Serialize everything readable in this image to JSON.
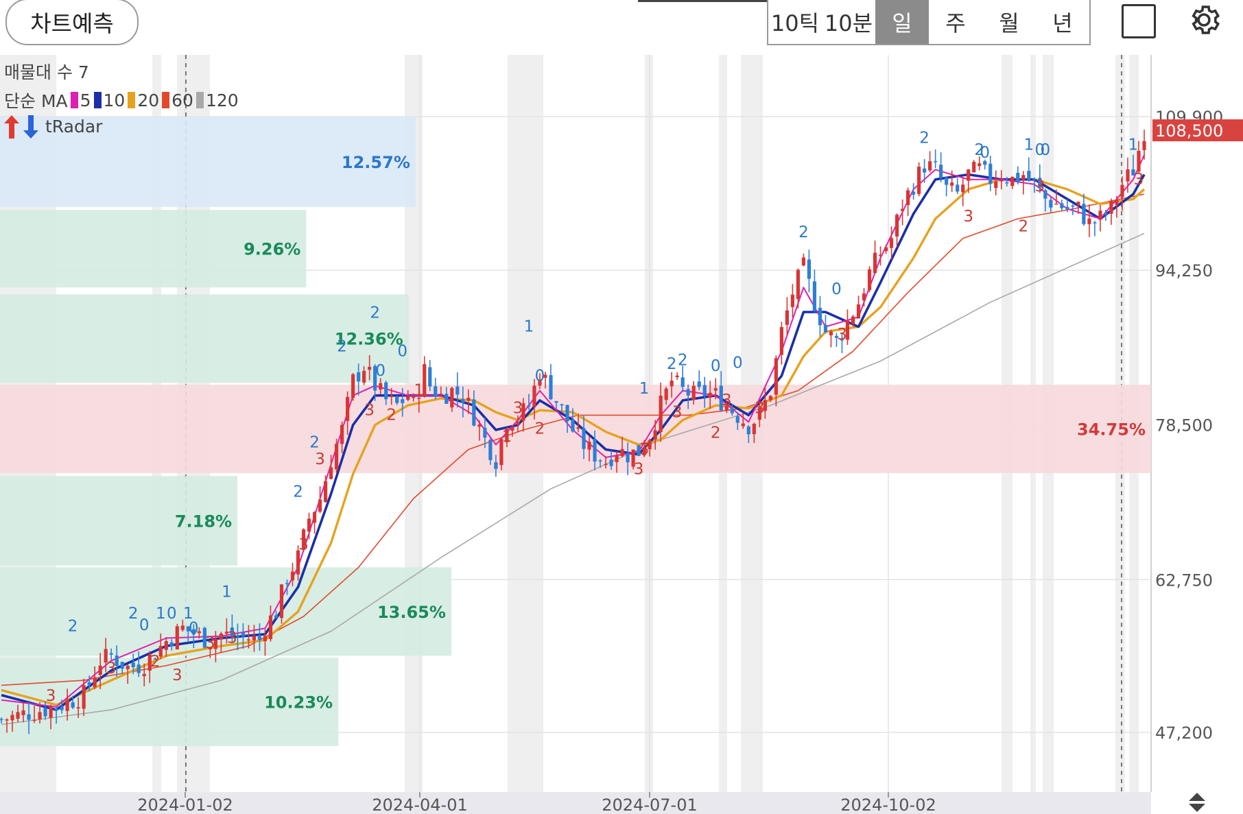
{
  "toolbar": {
    "predict_button": "차트예측",
    "periods": [
      "10틱",
      "10분",
      "일",
      "주",
      "월",
      "년"
    ],
    "selected_period": "일",
    "icons": [
      "square-icon",
      "gear-icon"
    ]
  },
  "legend": {
    "volume_profile": "매물대 수 7",
    "ma_label": "단순 MA",
    "ma_items": [
      {
        "label": "5",
        "color": "#e01fb0"
      },
      {
        "label": "10",
        "color": "#1a2fa8"
      },
      {
        "label": "20",
        "color": "#e6a21f"
      },
      {
        "label": "60",
        "color": "#e2492a"
      },
      {
        "label": "120",
        "color": "#a8a8a8"
      }
    ],
    "tradar": "tRadar"
  },
  "colors": {
    "up": "#d93535",
    "down": "#2d7fd6",
    "profile": "#d4ebe1",
    "profile_top": "#d9e8f7",
    "profile_max": "#f6d9dc",
    "grid": "#e3e3e3"
  },
  "chart_data": {
    "type": "candlestick",
    "symbol_last_price": "108,500",
    "x_tick_labels": [
      "2024-01-02",
      "2024-04-01",
      "2024-07-01",
      "2024-10-02"
    ],
    "y_tick_labels": [
      "47,200",
      "62,750",
      "78,500",
      "94,250",
      "109,900"
    ],
    "ylim": [
      44000,
      112500
    ],
    "price_series": [
      [
        0,
        48500
      ],
      [
        5,
        49200
      ],
      [
        10,
        49800
      ],
      [
        15,
        51000
      ],
      [
        18,
        54500
      ],
      [
        20,
        55000
      ],
      [
        23,
        53800
      ],
      [
        26,
        54200
      ],
      [
        30,
        56500
      ],
      [
        33,
        57800
      ],
      [
        38,
        56500
      ],
      [
        40,
        57200
      ],
      [
        42,
        57000
      ],
      [
        45,
        56800
      ],
      [
        47,
        56600
      ],
      [
        48,
        58000
      ],
      [
        50,
        59500
      ],
      [
        52,
        63000
      ],
      [
        54,
        65000
      ],
      [
        56,
        69000
      ],
      [
        58,
        71000
      ],
      [
        60,
        75000
      ],
      [
        62,
        78000
      ],
      [
        64,
        83000
      ],
      [
        66,
        84500
      ],
      [
        68,
        82500
      ],
      [
        70,
        81000
      ],
      [
        72,
        80500
      ],
      [
        74,
        81500
      ],
      [
        75,
        80500
      ],
      [
        77,
        84000
      ],
      [
        78,
        82500
      ],
      [
        80,
        81500
      ],
      [
        82,
        82000
      ],
      [
        84,
        81500
      ],
      [
        86,
        79500
      ],
      [
        88,
        77000
      ],
      [
        90,
        75000
      ],
      [
        92,
        79000
      ],
      [
        94,
        79200
      ],
      [
        96,
        80500
      ],
      [
        98,
        84000
      ],
      [
        100,
        82000
      ],
      [
        102,
        80000
      ],
      [
        104,
        78000
      ],
      [
        106,
        76500
      ],
      [
        108,
        75500
      ],
      [
        110,
        74800
      ],
      [
        112,
        76000
      ],
      [
        114,
        75500
      ],
      [
        116,
        75800
      ],
      [
        118,
        77500
      ],
      [
        120,
        80500
      ],
      [
        122,
        83000
      ],
      [
        124,
        82000
      ],
      [
        126,
        81500
      ],
      [
        128,
        81800
      ],
      [
        130,
        81500
      ],
      [
        132,
        80500
      ],
      [
        134,
        79500
      ],
      [
        136,
        78500
      ],
      [
        138,
        79500
      ],
      [
        140,
        82000
      ],
      [
        142,
        88000
      ],
      [
        144,
        92000
      ],
      [
        146,
        94500
      ],
      [
        148,
        91000
      ],
      [
        150,
        88000
      ],
      [
        152,
        87000
      ],
      [
        154,
        89000
      ],
      [
        156,
        91000
      ],
      [
        158,
        94000
      ],
      [
        160,
        96000
      ],
      [
        162,
        97500
      ],
      [
        164,
        101000
      ],
      [
        166,
        103000
      ],
      [
        168,
        105000
      ],
      [
        170,
        104500
      ],
      [
        172,
        102500
      ],
      [
        174,
        102000
      ],
      [
        176,
        104000
      ],
      [
        178,
        104500
      ],
      [
        180,
        103500
      ],
      [
        182,
        104000
      ],
      [
        184,
        103500
      ],
      [
        186,
        104000
      ],
      [
        188,
        103000
      ],
      [
        190,
        101500
      ],
      [
        192,
        101000
      ],
      [
        194,
        100500
      ],
      [
        196,
        100500
      ],
      [
        198,
        99000
      ],
      [
        200,
        99500
      ],
      [
        202,
        100500
      ],
      [
        204,
        103000
      ],
      [
        206,
        104500
      ],
      [
        208,
        108500
      ]
    ],
    "moving_averages": {
      "ma5": [
        [
          0,
          50500
        ],
        [
          10,
          49800
        ],
        [
          20,
          54500
        ],
        [
          30,
          56800
        ],
        [
          40,
          57000
        ],
        [
          48,
          57800
        ],
        [
          54,
          64000
        ],
        [
          60,
          74500
        ],
        [
          64,
          81500
        ],
        [
          68,
          82500
        ],
        [
          74,
          81500
        ],
        [
          80,
          81500
        ],
        [
          86,
          79500
        ],
        [
          90,
          76500
        ],
        [
          94,
          79000
        ],
        [
          98,
          82000
        ],
        [
          104,
          78000
        ],
        [
          110,
          75200
        ],
        [
          116,
          75800
        ],
        [
          120,
          79500
        ],
        [
          124,
          82000
        ],
        [
          130,
          81500
        ],
        [
          136,
          78800
        ],
        [
          142,
          86000
        ],
        [
          146,
          92500
        ],
        [
          150,
          88500
        ],
        [
          156,
          89500
        ],
        [
          160,
          95500
        ],
        [
          166,
          102500
        ],
        [
          170,
          104500
        ],
        [
          176,
          103500
        ],
        [
          182,
          103500
        ],
        [
          188,
          103000
        ],
        [
          194,
          100500
        ],
        [
          200,
          99500
        ],
        [
          206,
          103500
        ],
        [
          208,
          106000
        ]
      ],
      "ma10": [
        [
          0,
          51000
        ],
        [
          10,
          49500
        ],
        [
          20,
          53500
        ],
        [
          30,
          56000
        ],
        [
          40,
          56800
        ],
        [
          48,
          57200
        ],
        [
          54,
          62000
        ],
        [
          60,
          71500
        ],
        [
          64,
          78500
        ],
        [
          68,
          81500
        ],
        [
          74,
          81500
        ],
        [
          80,
          81500
        ],
        [
          86,
          80500
        ],
        [
          90,
          78000
        ],
        [
          94,
          78500
        ],
        [
          98,
          81000
        ],
        [
          104,
          79000
        ],
        [
          110,
          76000
        ],
        [
          116,
          75500
        ],
        [
          120,
          78000
        ],
        [
          124,
          81000
        ],
        [
          130,
          81500
        ],
        [
          136,
          79500
        ],
        [
          142,
          83500
        ],
        [
          146,
          90000
        ],
        [
          150,
          90000
        ],
        [
          156,
          88500
        ],
        [
          160,
          93000
        ],
        [
          166,
          100000
        ],
        [
          170,
          103500
        ],
        [
          176,
          104000
        ],
        [
          182,
          103500
        ],
        [
          188,
          103500
        ],
        [
          194,
          101500
        ],
        [
          200,
          99500
        ],
        [
          206,
          102000
        ],
        [
          208,
          104000
        ]
      ],
      "ma20": [
        [
          0,
          51500
        ],
        [
          10,
          50000
        ],
        [
          20,
          52500
        ],
        [
          30,
          55000
        ],
        [
          40,
          56000
        ],
        [
          48,
          56600
        ],
        [
          54,
          59500
        ],
        [
          60,
          66500
        ],
        [
          64,
          73500
        ],
        [
          68,
          78500
        ],
        [
          74,
          80500
        ],
        [
          80,
          81200
        ],
        [
          86,
          81000
        ],
        [
          90,
          79800
        ],
        [
          94,
          79000
        ],
        [
          98,
          80000
        ],
        [
          104,
          79800
        ],
        [
          110,
          77800
        ],
        [
          116,
          76500
        ],
        [
          120,
          77000
        ],
        [
          124,
          79000
        ],
        [
          130,
          80500
        ],
        [
          136,
          80200
        ],
        [
          142,
          81500
        ],
        [
          146,
          85500
        ],
        [
          150,
          88000
        ],
        [
          156,
          88500
        ],
        [
          160,
          90500
        ],
        [
          166,
          95500
        ],
        [
          170,
          99500
        ],
        [
          176,
          102500
        ],
        [
          182,
          103500
        ],
        [
          188,
          103500
        ],
        [
          194,
          102500
        ],
        [
          200,
          101000
        ],
        [
          206,
          101500
        ],
        [
          208,
          102500
        ]
      ],
      "ma60": [
        [
          0,
          52000
        ],
        [
          15,
          52500
        ],
        [
          30,
          54000
        ],
        [
          45,
          56000
        ],
        [
          55,
          59000
        ],
        [
          65,
          64000
        ],
        [
          75,
          71000
        ],
        [
          85,
          76000
        ],
        [
          95,
          78000
        ],
        [
          105,
          79500
        ],
        [
          115,
          79500
        ],
        [
          125,
          79500
        ],
        [
          135,
          80200
        ],
        [
          145,
          82000
        ],
        [
          155,
          86000
        ],
        [
          165,
          92000
        ],
        [
          175,
          97500
        ],
        [
          185,
          99500
        ],
        [
          195,
          100500
        ],
        [
          208,
          102000
        ]
      ],
      "ma120": [
        [
          0,
          48000
        ],
        [
          20,
          49500
        ],
        [
          40,
          52500
        ],
        [
          60,
          57500
        ],
        [
          80,
          65000
        ],
        [
          100,
          72000
        ],
        [
          120,
          77000
        ],
        [
          140,
          80500
        ],
        [
          160,
          85000
        ],
        [
          180,
          91000
        ],
        [
          208,
          98000
        ]
      ]
    },
    "volume_profile": [
      {
        "label": "12.57%",
        "price_range": [
          100700,
          109900
        ]
      },
      {
        "label": "9.26%",
        "price_range": [
          92500,
          100400
        ]
      },
      {
        "label": "12.36%",
        "price_range": [
          82800,
          91800
        ]
      },
      {
        "label": "34.75%",
        "price_range": [
          73600,
          82600
        ]
      },
      {
        "label": "7.18%",
        "price_range": [
          64200,
          73300
        ]
      },
      {
        "label": "13.65%",
        "price_range": [
          55000,
          64000
        ]
      },
      {
        "label": "10.23%",
        "price_range": [
          45800,
          54800
        ]
      }
    ],
    "signal_markers": [
      {
        "t": "2",
        "i": 13,
        "p": 57500,
        "kind": "up"
      },
      {
        "t": "3",
        "i": 9,
        "p": 50400,
        "kind": "down"
      },
      {
        "t": "2",
        "i": 24,
        "p": 58800,
        "kind": "up"
      },
      {
        "t": "0",
        "i": 26,
        "p": 57600,
        "kind": "up"
      },
      {
        "t": "1",
        "i": 29,
        "p": 58800,
        "kind": "up"
      },
      {
        "t": "0",
        "i": 31,
        "p": 58800,
        "kind": "up"
      },
      {
        "t": "1",
        "i": 34,
        "p": 58800,
        "kind": "up"
      },
      {
        "t": "0",
        "i": 35,
        "p": 57300,
        "kind": "up"
      },
      {
        "t": "3",
        "i": 20,
        "p": 53200,
        "kind": "down"
      },
      {
        "t": "2",
        "i": 28,
        "p": 53900,
        "kind": "down"
      },
      {
        "t": "3",
        "i": 32,
        "p": 52500,
        "kind": "down"
      },
      {
        "t": "3",
        "i": 38,
        "p": 55800,
        "kind": "down"
      },
      {
        "t": "3",
        "i": 42,
        "p": 56300,
        "kind": "down"
      },
      {
        "t": "1",
        "i": 41,
        "p": 61000,
        "kind": "up"
      },
      {
        "t": "2",
        "i": 54,
        "p": 71200,
        "kind": "up"
      },
      {
        "t": "3",
        "i": 55,
        "p": 65800,
        "kind": "down"
      },
      {
        "t": "2",
        "i": 57,
        "p": 76200,
        "kind": "up"
      },
      {
        "t": "3",
        "i": 58,
        "p": 74500,
        "kind": "down"
      },
      {
        "t": "2",
        "i": 62,
        "p": 86000,
        "kind": "up"
      },
      {
        "t": "2",
        "i": 68,
        "p": 89400,
        "kind": "up"
      },
      {
        "t": "0",
        "i": 69,
        "p": 83500,
        "kind": "up"
      },
      {
        "t": "3",
        "i": 67,
        "p": 79500,
        "kind": "down"
      },
      {
        "t": "2",
        "i": 71,
        "p": 79000,
        "kind": "down"
      },
      {
        "t": "0",
        "i": 73,
        "p": 85500,
        "kind": "up"
      },
      {
        "t": "1",
        "i": 76,
        "p": 81500,
        "kind": "down"
      },
      {
        "t": "1",
        "i": 96,
        "p": 88000,
        "kind": "up"
      },
      {
        "t": "0",
        "i": 98,
        "p": 83000,
        "kind": "up"
      },
      {
        "t": "2",
        "i": 98,
        "p": 77600,
        "kind": "down"
      },
      {
        "t": "1",
        "i": 92,
        "p": 76800,
        "kind": "down"
      },
      {
        "t": "3",
        "i": 94,
        "p": 79700,
        "kind": "down"
      },
      {
        "t": "3",
        "i": 117,
        "p": 75500,
        "kind": "down"
      },
      {
        "t": "3",
        "i": 116,
        "p": 73500,
        "kind": "down"
      },
      {
        "t": "1",
        "i": 117,
        "p": 81700,
        "kind": "up"
      },
      {
        "t": "2",
        "i": 122,
        "p": 84200,
        "kind": "up"
      },
      {
        "t": "2",
        "i": 124,
        "p": 84600,
        "kind": "up"
      },
      {
        "t": "3",
        "i": 123,
        "p": 79300,
        "kind": "down"
      },
      {
        "t": "0",
        "i": 130,
        "p": 84000,
        "kind": "up"
      },
      {
        "t": "0",
        "i": 134,
        "p": 84300,
        "kind": "up"
      },
      {
        "t": "3",
        "i": 132,
        "p": 80500,
        "kind": "down"
      },
      {
        "t": "2",
        "i": 130,
        "p": 77200,
        "kind": "down"
      },
      {
        "t": "3",
        "i": 138,
        "p": 79700,
        "kind": "down"
      },
      {
        "t": "2",
        "i": 146,
        "p": 97600,
        "kind": "up"
      },
      {
        "t": "0",
        "i": 152,
        "p": 91800,
        "kind": "up"
      },
      {
        "t": "3",
        "i": 153,
        "p": 87200,
        "kind": "down"
      },
      {
        "t": "2",
        "i": 168,
        "p": 107200,
        "kind": "up"
      },
      {
        "t": "3",
        "i": 176,
        "p": 99200,
        "kind": "down"
      },
      {
        "t": "2",
        "i": 178,
        "p": 106000,
        "kind": "up"
      },
      {
        "t": "0",
        "i": 179,
        "p": 105700,
        "kind": "up"
      },
      {
        "t": "1",
        "i": 187,
        "p": 106500,
        "kind": "up"
      },
      {
        "t": "0",
        "i": 189,
        "p": 106000,
        "kind": "up"
      },
      {
        "t": "0",
        "i": 190,
        "p": 106000,
        "kind": "up"
      },
      {
        "t": "3",
        "i": 189,
        "p": 102300,
        "kind": "down"
      },
      {
        "t": "2",
        "i": 186,
        "p": 98200,
        "kind": "down"
      },
      {
        "t": "1",
        "i": 206,
        "p": 106500,
        "kind": "up"
      },
      {
        "t": "3",
        "i": 207,
        "p": 103000,
        "kind": "down"
      }
    ]
  }
}
